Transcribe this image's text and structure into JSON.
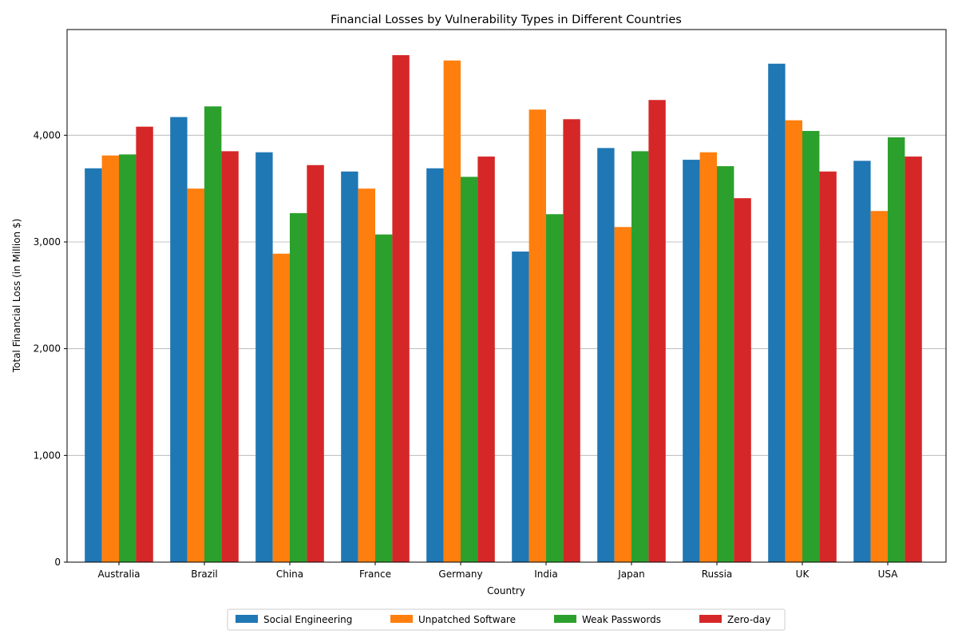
{
  "chart_data": {
    "type": "bar",
    "title": "Financial Losses by Vulnerability Types in Different Countries",
    "xlabel": "Country",
    "ylabel": "Total Financial Loss (in Million $)",
    "ylim": [
      0,
      4990
    ],
    "yticks": [
      0,
      1000,
      2000,
      3000,
      4000
    ],
    "ytick_labels": [
      "0",
      "1,000",
      "2,000",
      "3,000",
      "4,000"
    ],
    "grid": "horizontal",
    "legend_position": "bottom-center",
    "categories": [
      "Australia",
      "Brazil",
      "China",
      "France",
      "Germany",
      "India",
      "Japan",
      "Russia",
      "UK",
      "USA"
    ],
    "series": [
      {
        "name": "Social Engineering",
        "color": "#1f77b4",
        "values": [
          3690,
          4170,
          3840,
          3660,
          3690,
          2910,
          3880,
          3770,
          4670,
          3760
        ]
      },
      {
        "name": "Unpatched Software",
        "color": "#ff7f0e",
        "values": [
          3810,
          3500,
          2890,
          3500,
          4700,
          4240,
          3140,
          3840,
          4140,
          3290
        ]
      },
      {
        "name": "Weak Passwords",
        "color": "#2ca02c",
        "values": [
          3820,
          4270,
          3270,
          3070,
          3610,
          3260,
          3850,
          3710,
          4040,
          3980
        ]
      },
      {
        "name": "Zero-day",
        "color": "#d62728",
        "values": [
          4080,
          3850,
          3720,
          4750,
          3800,
          4150,
          4330,
          3410,
          3660,
          3800
        ]
      }
    ]
  }
}
